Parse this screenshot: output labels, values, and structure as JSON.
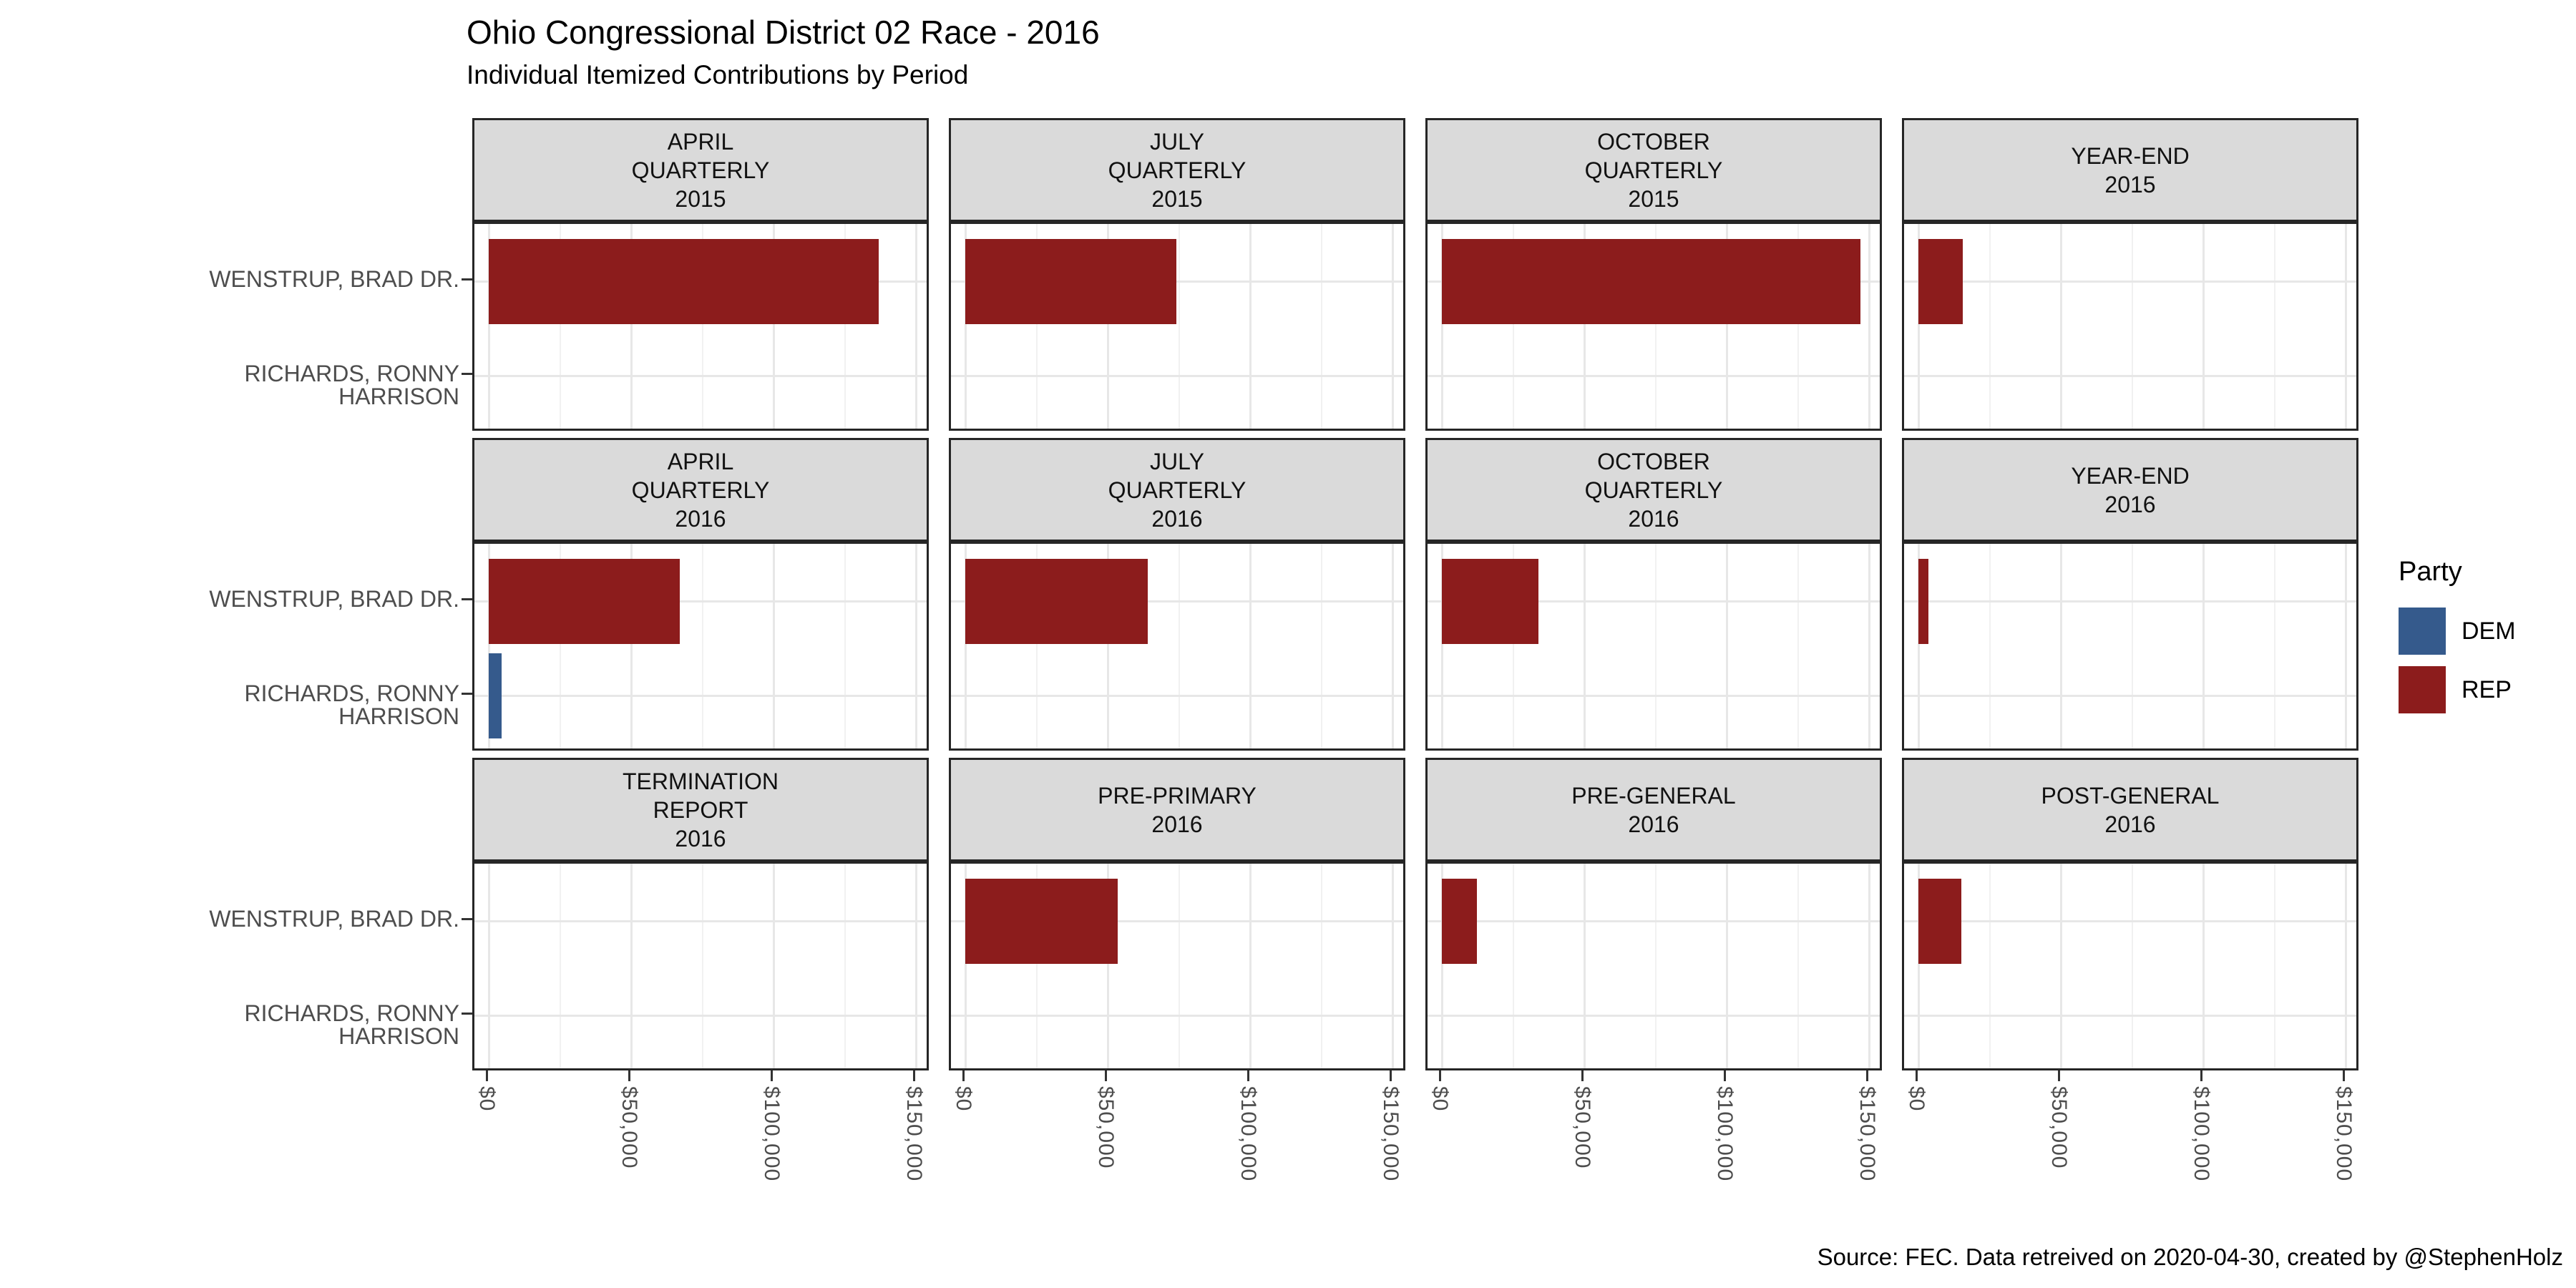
{
  "header": {
    "title": "Ohio Congressional District 02 Race - 2016",
    "subtitle": "Individual Itemized Contributions by Period"
  },
  "caption": "Source: FEC. Data retreived on 2020-04-30, created by @StephenHolz",
  "legend": {
    "title": "Party",
    "items": [
      {
        "label": "DEM",
        "color": "#355A8C"
      },
      {
        "label": "REP",
        "color": "#8C1C1C"
      }
    ]
  },
  "chart_data": {
    "type": "bar",
    "orientation": "horizontal",
    "unit": "USD",
    "title": "Ohio Congressional District 02 Race - 2016",
    "subtitle": "Individual Itemized Contributions by Period",
    "x_axis": {
      "tick_labels": [
        "$0",
        "$50,000",
        "$100,000",
        "$150,000"
      ],
      "tick_values": [
        0,
        50000,
        100000,
        150000
      ],
      "minor_tick_values": [
        25000,
        75000,
        125000
      ],
      "range": [
        0,
        157500
      ],
      "grid": true
    },
    "y_axis": {
      "categories": [
        "WENSTRUP, BRAD DR.",
        "RICHARDS, RONNY HARRISON"
      ]
    },
    "party_colors": {
      "DEM": "#355A8C",
      "REP": "#8C1C1C"
    },
    "legend_position": "right",
    "facet_grid": {
      "rows": 3,
      "cols": 4
    },
    "facets": [
      {
        "period": "APRIL QUARTERLY 2015",
        "label": "APRIL\nQUARTERLY\n2015",
        "bars": [
          {
            "candidate": "WENSTRUP, BRAD DR.",
            "party": "REP",
            "amount": 137000
          }
        ]
      },
      {
        "period": "JULY QUARTERLY 2015",
        "label": "JULY\nQUARTERLY\n2015",
        "bars": [
          {
            "candidate": "WENSTRUP, BRAD DR.",
            "party": "REP",
            "amount": 74000
          }
        ]
      },
      {
        "period": "OCTOBER QUARTERLY 2015",
        "label": "OCTOBER\nQUARTERLY\n2015",
        "bars": [
          {
            "candidate": "WENSTRUP, BRAD DR.",
            "party": "REP",
            "amount": 147000
          }
        ]
      },
      {
        "period": "YEAR-END 2015",
        "label": "YEAR-END\n2015",
        "bars": [
          {
            "candidate": "WENSTRUP, BRAD DR.",
            "party": "REP",
            "amount": 15700
          }
        ]
      },
      {
        "period": "APRIL QUARTERLY 2016",
        "label": "APRIL\nQUARTERLY\n2016",
        "bars": [
          {
            "candidate": "WENSTRUP, BRAD DR.",
            "party": "REP",
            "amount": 67000
          },
          {
            "candidate": "RICHARDS, RONNY HARRISON",
            "party": "DEM",
            "amount": 4400
          }
        ]
      },
      {
        "period": "JULY QUARTERLY 2016",
        "label": "JULY\nQUARTERLY\n2016",
        "bars": [
          {
            "candidate": "WENSTRUP, BRAD DR.",
            "party": "REP",
            "amount": 64000
          }
        ]
      },
      {
        "period": "OCTOBER QUARTERLY 2016",
        "label": "OCTOBER\nQUARTERLY\n2016",
        "bars": [
          {
            "candidate": "WENSTRUP, BRAD DR.",
            "party": "REP",
            "amount": 34000
          }
        ]
      },
      {
        "period": "YEAR-END 2016",
        "label": "YEAR-END\n2016",
        "bars": [
          {
            "candidate": "WENSTRUP, BRAD DR.",
            "party": "REP",
            "amount": 3500
          }
        ]
      },
      {
        "period": "TERMINATION REPORT 2016",
        "label": "TERMINATION\nREPORT\n2016",
        "bars": []
      },
      {
        "period": "PRE-PRIMARY 2016",
        "label": "PRE-PRIMARY\n2016",
        "bars": [
          {
            "candidate": "WENSTRUP, BRAD DR.",
            "party": "REP",
            "amount": 53500
          }
        ]
      },
      {
        "period": "PRE-GENERAL 2016",
        "label": "PRE-GENERAL\n2016",
        "bars": [
          {
            "candidate": "WENSTRUP, BRAD DR.",
            "party": "REP",
            "amount": 12400
          }
        ]
      },
      {
        "period": "POST-GENERAL 2016",
        "label": "POST-GENERAL\n2016",
        "bars": [
          {
            "candidate": "WENSTRUP, BRAD DR.",
            "party": "REP",
            "amount": 15200
          }
        ]
      }
    ]
  }
}
